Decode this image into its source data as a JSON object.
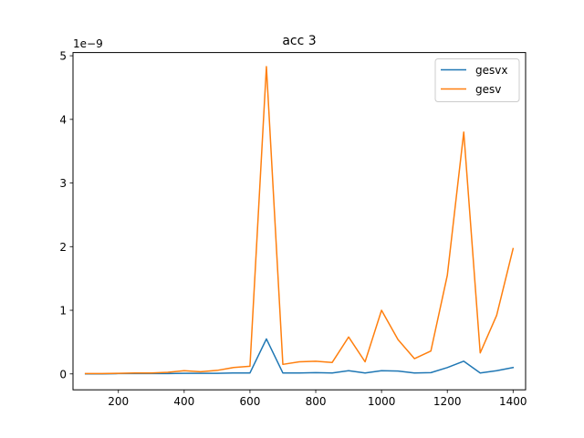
{
  "chart_data": {
    "type": "line",
    "title": "acc 3",
    "xlabel": "",
    "ylabel": "",
    "y_scale_label": "1e−9",
    "x": [
      100,
      150,
      200,
      250,
      300,
      350,
      400,
      450,
      500,
      550,
      600,
      650,
      700,
      750,
      800,
      850,
      900,
      950,
      1000,
      1050,
      1100,
      1150,
      1200,
      1250,
      1300,
      1350,
      1400
    ],
    "xlim": [
      62,
      1438
    ],
    "ylim": [
      -0.25,
      5.05
    ],
    "xticks": [
      200,
      400,
      600,
      800,
      1000,
      1200,
      1400
    ],
    "xtick_labels": [
      "200",
      "400",
      "600",
      "800",
      "1000",
      "1200",
      "1400"
    ],
    "yticks": [
      0,
      1,
      2,
      3,
      4,
      5
    ],
    "ytick_labels": [
      "0",
      "1",
      "2",
      "3",
      "4",
      "5"
    ],
    "grid": false,
    "legend_position": "top-right",
    "series": [
      {
        "name": "gesvx",
        "color": "#1f77b4",
        "values": [
          0.0,
          0.0,
          0.005,
          0.005,
          0.005,
          0.005,
          0.01,
          0.01,
          0.01,
          0.015,
          0.015,
          0.55,
          0.015,
          0.015,
          0.02,
          0.015,
          0.05,
          0.015,
          0.05,
          0.045,
          0.015,
          0.02,
          0.1,
          0.2,
          0.015,
          0.05,
          0.1
        ]
      },
      {
        "name": "gesv",
        "color": "#ff7f0e",
        "values": [
          0.005,
          0.005,
          0.01,
          0.015,
          0.015,
          0.025,
          0.05,
          0.035,
          0.055,
          0.1,
          0.12,
          4.83,
          0.15,
          0.19,
          0.2,
          0.18,
          0.58,
          0.19,
          1.0,
          0.54,
          0.24,
          0.36,
          1.55,
          3.8,
          0.33,
          0.92,
          1.97
        ]
      }
    ]
  }
}
